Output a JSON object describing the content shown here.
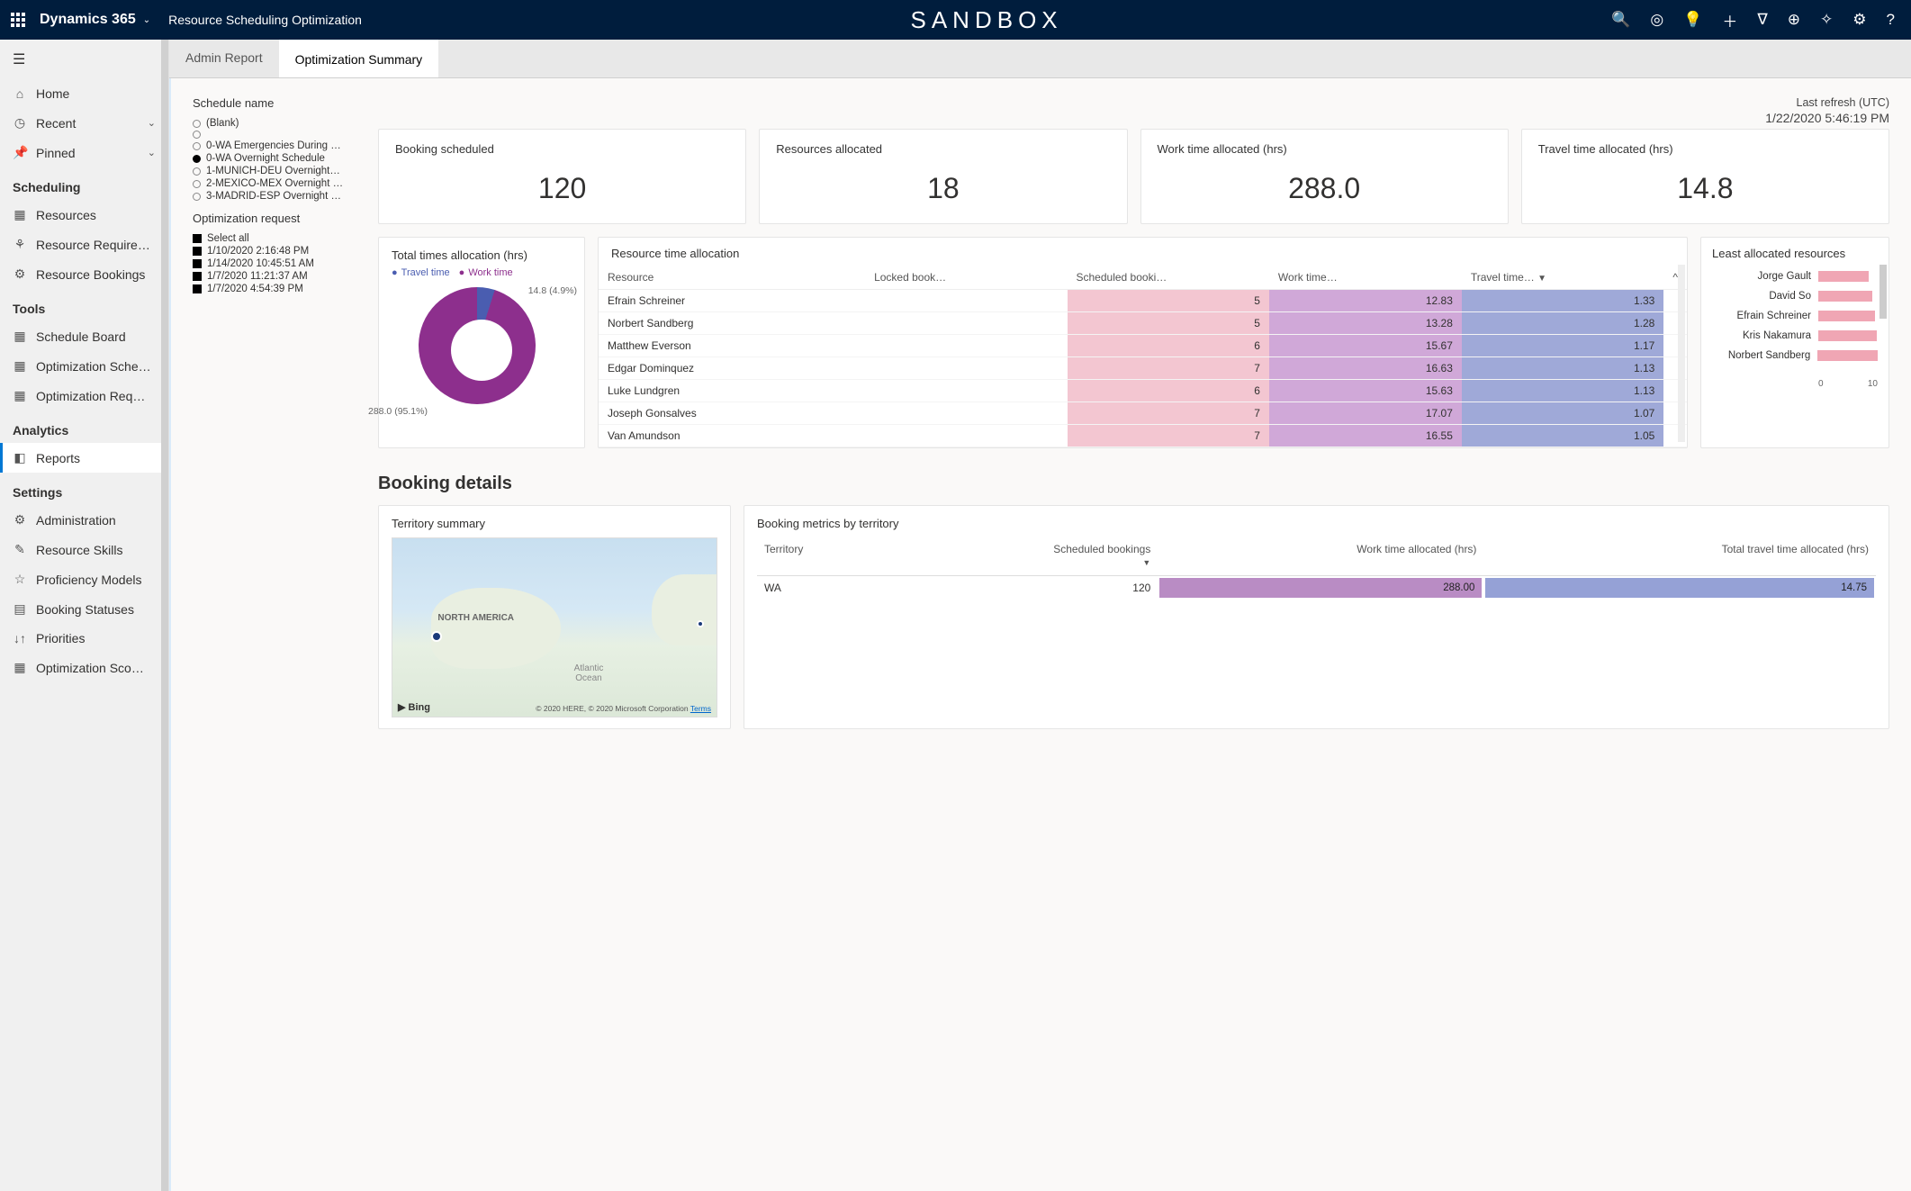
{
  "topbar": {
    "brand": "Dynamics 365",
    "app_title": "Resource Scheduling Optimization",
    "env_badge": "SANDBOX"
  },
  "sidebar": {
    "top": [
      {
        "icon": "⌂",
        "label": "Home"
      },
      {
        "icon": "◷",
        "label": "Recent",
        "chev": true
      },
      {
        "icon": "📌",
        "label": "Pinned",
        "chev": true
      }
    ],
    "sections": [
      {
        "title": "Scheduling",
        "items": [
          {
            "icon": "▦",
            "label": "Resources"
          },
          {
            "icon": "⚘",
            "label": "Resource Require…"
          },
          {
            "icon": "⚙",
            "label": "Resource Bookings"
          }
        ]
      },
      {
        "title": "Tools",
        "items": [
          {
            "icon": "▦",
            "label": "Schedule Board"
          },
          {
            "icon": "▦",
            "label": "Optimization Sche…"
          },
          {
            "icon": "▦",
            "label": "Optimization Req…"
          }
        ]
      },
      {
        "title": "Analytics",
        "items": [
          {
            "icon": "◧",
            "label": "Reports",
            "active": true
          }
        ]
      },
      {
        "title": "Settings",
        "items": [
          {
            "icon": "⚙",
            "label": "Administration"
          },
          {
            "icon": "✎",
            "label": "Resource Skills"
          },
          {
            "icon": "☆",
            "label": "Proficiency Models"
          },
          {
            "icon": "▤",
            "label": "Booking Statuses"
          },
          {
            "icon": "↓↑",
            "label": "Priorities"
          },
          {
            "icon": "▦",
            "label": "Optimization Sco…"
          }
        ]
      }
    ]
  },
  "tabs": [
    {
      "label": "Admin Report",
      "active": false
    },
    {
      "label": "Optimization Summary",
      "active": true
    }
  ],
  "filters": {
    "schedule_label": "Schedule name",
    "schedules": [
      {
        "label": "(Blank)",
        "selected": false
      },
      {
        "label": "",
        "selected": false
      },
      {
        "label": "0-WA Emergencies During …",
        "selected": false
      },
      {
        "label": "0-WA Overnight Schedule",
        "selected": true
      },
      {
        "label": "1-MUNICH-DEU Overnight…",
        "selected": false
      },
      {
        "label": "2-MEXICO-MEX Overnight …",
        "selected": false
      },
      {
        "label": "3-MADRID-ESP Overnight …",
        "selected": false
      }
    ],
    "opt_req_label": "Optimization request",
    "opt_requests": [
      "Select all",
      "1/10/2020 2:16:48 PM",
      "1/14/2020 10:45:51 AM",
      "1/7/2020 11:21:37 AM",
      "1/7/2020 4:54:39 PM"
    ]
  },
  "refresh": {
    "label": "Last refresh (UTC)",
    "timestamp": "1/22/2020 5:46:19 PM"
  },
  "kpis": [
    {
      "label": "Booking scheduled",
      "value": "120"
    },
    {
      "label": "Resources allocated",
      "value": "18"
    },
    {
      "label": "Work time allocated (hrs)",
      "value": "288.0"
    },
    {
      "label": "Travel time allocated (hrs)",
      "value": "14.8"
    }
  ],
  "donut": {
    "title": "Total times allocation (hrs)",
    "legend_travel": "Travel time",
    "legend_work": "Work time",
    "travel_color": "#4a5db0",
    "work_color": "#8d2f8d",
    "travel_pct": 4.9,
    "work_pct": 95.1,
    "label_travel": "14.8 (4.9%)",
    "label_work": "288.0 (95.1%)"
  },
  "resource_table": {
    "title": "Resource time allocation",
    "columns": [
      "Resource",
      "Locked book…",
      "Scheduled booki…",
      "Work time…",
      "Travel time…"
    ],
    "colors": {
      "sched_bg": "#f3c6d1",
      "work_bg": "#d0a8d8",
      "travel_bg": "#9fa9d8"
    },
    "rows": [
      {
        "name": "Efrain Schreiner",
        "locked": "",
        "sched": "5",
        "work": "12.83",
        "travel": "1.33"
      },
      {
        "name": "Norbert Sandberg",
        "locked": "",
        "sched": "5",
        "work": "13.28",
        "travel": "1.28"
      },
      {
        "name": "Matthew Everson",
        "locked": "",
        "sched": "6",
        "work": "15.67",
        "travel": "1.17"
      },
      {
        "name": "Edgar Dominquez",
        "locked": "",
        "sched": "7",
        "work": "16.63",
        "travel": "1.13"
      },
      {
        "name": "Luke Lundgren",
        "locked": "",
        "sched": "6",
        "work": "15.63",
        "travel": "1.13"
      },
      {
        "name": "Joseph Gonsalves",
        "locked": "",
        "sched": "7",
        "work": "17.07",
        "travel": "1.07"
      },
      {
        "name": "Van Amundson",
        "locked": "",
        "sched": "7",
        "work": "16.55",
        "travel": "1.05"
      }
    ]
  },
  "least": {
    "title": "Least allocated resources",
    "bar_color": "#f0a6b4",
    "axis_min": "0",
    "axis_max": "10",
    "rows": [
      {
        "name": "Jorge Gault",
        "val": 8
      },
      {
        "name": "David So",
        "val": 8.5
      },
      {
        "name": "Efrain Schreiner",
        "val": 9
      },
      {
        "name": "Kris Nakamura",
        "val": 9.3
      },
      {
        "name": "Norbert Sandberg",
        "val": 9.6
      }
    ]
  },
  "booking_details_title": "Booking details",
  "map": {
    "title": "Territory summary",
    "na_label": "NORTH AMERICA",
    "ocean_label": "Atlantic\nOcean",
    "bing": "▶ Bing",
    "attrib": "© 2020 HERE, © 2020 Microsoft Corporation",
    "terms": "Terms"
  },
  "territory_metrics": {
    "title": "Booking metrics by territory",
    "columns": [
      "Territory",
      "Scheduled bookings",
      "Work time allocated (hrs)",
      "Total travel time allocated (hrs)"
    ],
    "colors": {
      "work": "#b98cc4",
      "travel": "#95a1d6"
    },
    "rows": [
      {
        "territory": "WA",
        "sched": "120",
        "work": "288.00",
        "travel": "14.75"
      }
    ]
  }
}
